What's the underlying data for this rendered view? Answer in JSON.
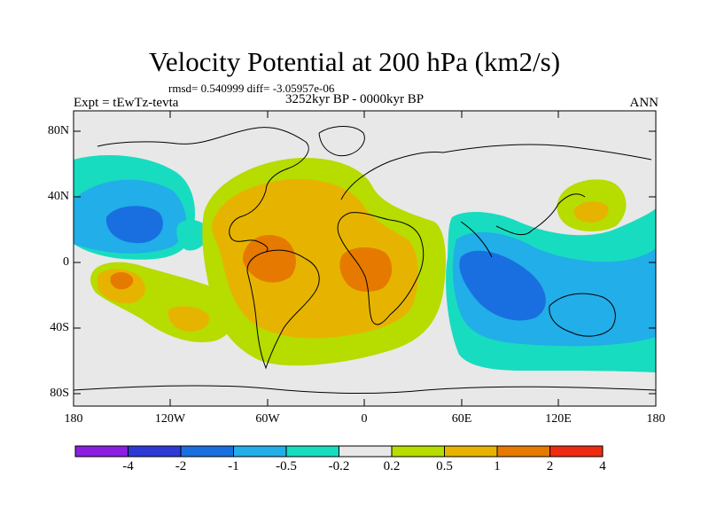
{
  "title": "Velocity Potential at 200 hPa (km2/s)",
  "stats": "rmsd= 0.540999 diff= -3.05957e-06",
  "experiment": "Expt = tEwTz-tevta",
  "period": "3252kyr BP - 0000kyr BP",
  "season": "ANN",
  "lat_labels": [
    "80N",
    "40N",
    "0",
    "40S",
    "80S"
  ],
  "lon_labels": [
    "180",
    "120W",
    "60W",
    "0",
    "60E",
    "120E",
    "180"
  ],
  "colorbar": {
    "labels": [
      "-4",
      "-2",
      "-1",
      "-0.5",
      "-0.2",
      "0.2",
      "0.5",
      "1",
      "2",
      "4"
    ],
    "colors": [
      "#8a1fe0",
      "#2e3ad6",
      "#1a6fe0",
      "#22aee8",
      "#18dcc0",
      "#e8e8e8",
      "#b6dc00",
      "#e6b400",
      "#e67a00",
      "#ee2a10"
    ]
  },
  "colors": {
    "ocean_land_bg": "#e8e8e8",
    "neg_weak": "#18dcc0",
    "neg_mid": "#22aee8",
    "neg_strong": "#1a6fe0",
    "pos_weak": "#b6dc00",
    "pos_mid": "#e6b400",
    "pos_strong": "#e67a00"
  }
}
